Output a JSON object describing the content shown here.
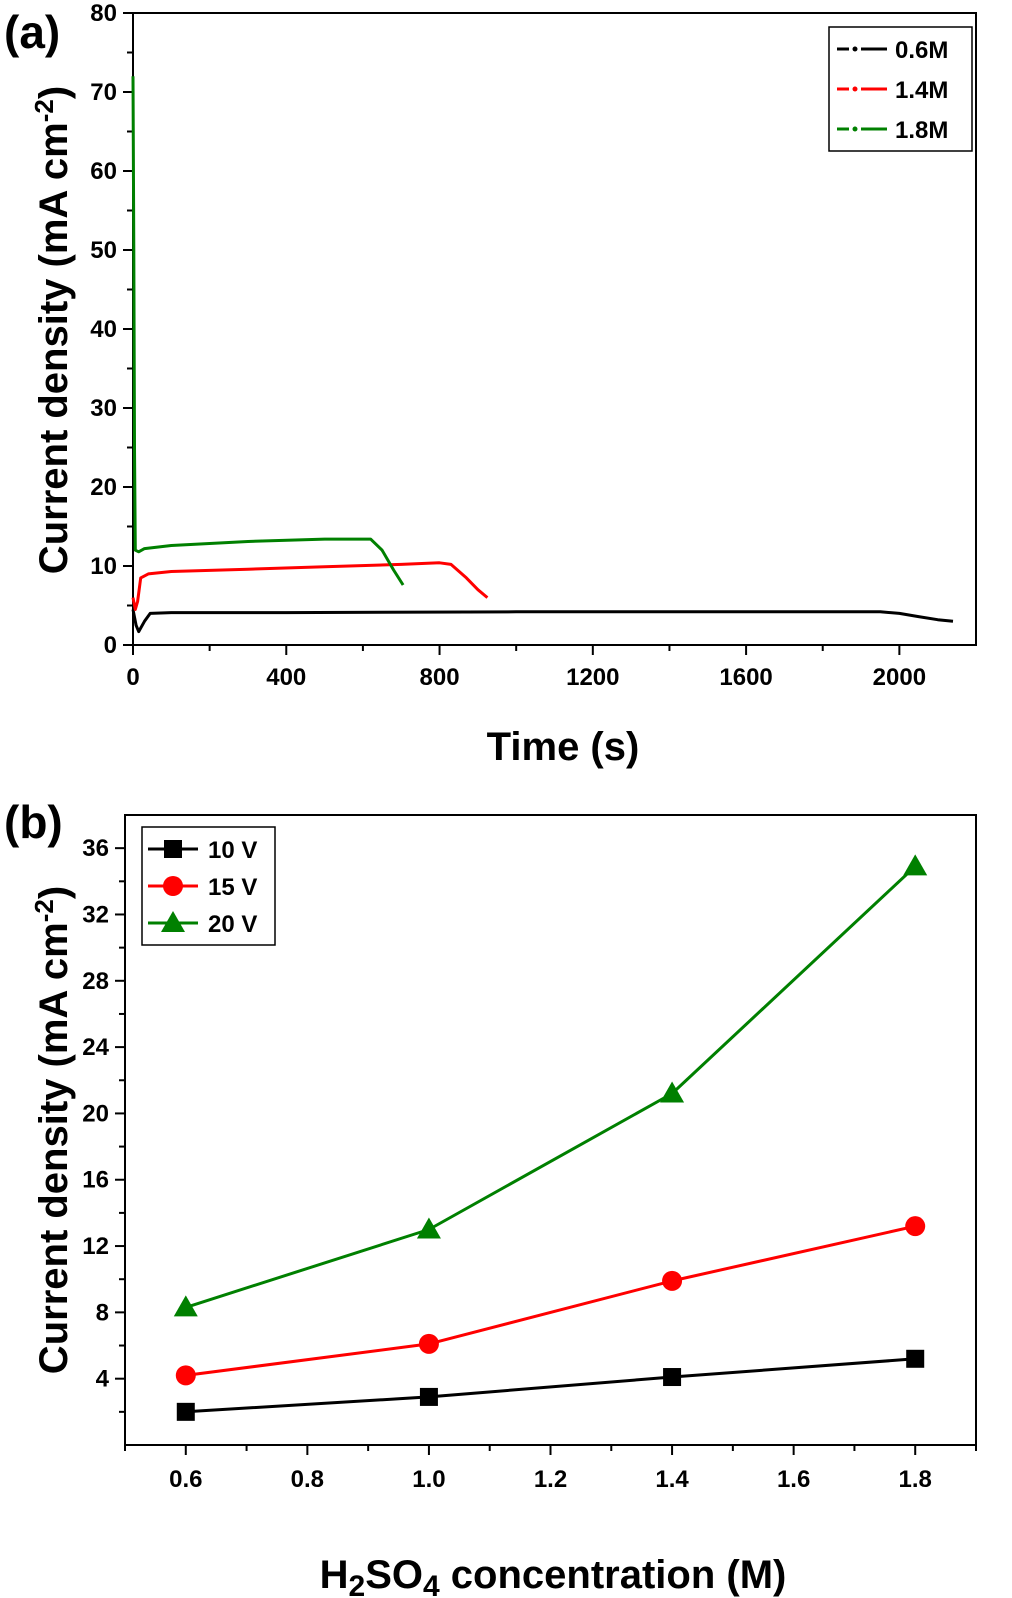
{
  "chart_data": [
    {
      "panel_label": "(a)",
      "type": "line",
      "xlabel": "Time (s)",
      "ylabel_main": "Current density (mA cm",
      "ylabel_sup": "-2",
      "ylabel_end": ")",
      "xlim": [
        0,
        2200
      ],
      "ylim": [
        0,
        80
      ],
      "xticks": [
        0,
        400,
        800,
        1200,
        1600,
        2000
      ],
      "yticks": [
        0,
        10,
        20,
        30,
        40,
        50,
        60,
        70,
        80
      ],
      "legend_position": "top-right",
      "series": [
        {
          "name": "0.6M",
          "color": "#000000",
          "points": [
            [
              0,
              4.5
            ],
            [
              8,
              2.5
            ],
            [
              15,
              1.7
            ],
            [
              30,
              3.0
            ],
            [
              45,
              4.0
            ],
            [
              100,
              4.1
            ],
            [
              400,
              4.1
            ],
            [
              1000,
              4.2
            ],
            [
              1600,
              4.2
            ],
            [
              1950,
              4.2
            ],
            [
              2000,
              4.0
            ],
            [
              2050,
              3.6
            ],
            [
              2100,
              3.2
            ],
            [
              2140,
              3.0
            ]
          ]
        },
        {
          "name": "1.4M",
          "color": "#ff0000",
          "points": [
            [
              0,
              6.0
            ],
            [
              6,
              4.5
            ],
            [
              12,
              5.5
            ],
            [
              20,
              8.5
            ],
            [
              40,
              9.0
            ],
            [
              100,
              9.3
            ],
            [
              300,
              9.6
            ],
            [
              500,
              9.9
            ],
            [
              700,
              10.2
            ],
            [
              800,
              10.4
            ],
            [
              830,
              10.2
            ],
            [
              870,
              8.5
            ],
            [
              900,
              7.0
            ],
            [
              925,
              6.0
            ]
          ]
        },
        {
          "name": "1.8M",
          "color": "#008000",
          "points": [
            [
              0,
              72.0
            ],
            [
              2,
              50.0
            ],
            [
              4,
              25.0
            ],
            [
              6,
              12.0
            ],
            [
              15,
              11.8
            ],
            [
              30,
              12.2
            ],
            [
              100,
              12.6
            ],
            [
              300,
              13.1
            ],
            [
              500,
              13.4
            ],
            [
              620,
              13.4
            ],
            [
              650,
              12.0
            ],
            [
              680,
              9.5
            ],
            [
              705,
              7.6
            ]
          ]
        }
      ]
    },
    {
      "panel_label": "(b)",
      "type": "line",
      "xlabel_parts": [
        "H",
        "2",
        "SO",
        "4",
        " concentration (M)"
      ],
      "ylabel_main": "Current density (mA cm",
      "ylabel_sup": "-2",
      "ylabel_end": ")",
      "xlim": [
        0.5,
        1.9
      ],
      "ylim": [
        0,
        38
      ],
      "x": [
        0.6,
        1.0,
        1.4,
        1.8
      ],
      "xticks": [
        "0.6",
        "0.8",
        "1.0",
        "1.2",
        "1.4",
        "1.6",
        "1.8"
      ],
      "yticks": [
        4,
        8,
        12,
        16,
        20,
        24,
        28,
        32,
        36
      ],
      "legend_position": "top-left",
      "series": [
        {
          "name": "10 V",
          "color": "#000000",
          "marker": "square",
          "values": [
            2.0,
            2.9,
            4.1,
            5.2
          ]
        },
        {
          "name": "15 V",
          "color": "#ff0000",
          "marker": "circle",
          "values": [
            4.2,
            6.1,
            9.9,
            13.2
          ]
        },
        {
          "name": "20 V",
          "color": "#008000",
          "marker": "triangle",
          "values": [
            8.3,
            13.0,
            21.2,
            34.9
          ]
        }
      ]
    }
  ]
}
